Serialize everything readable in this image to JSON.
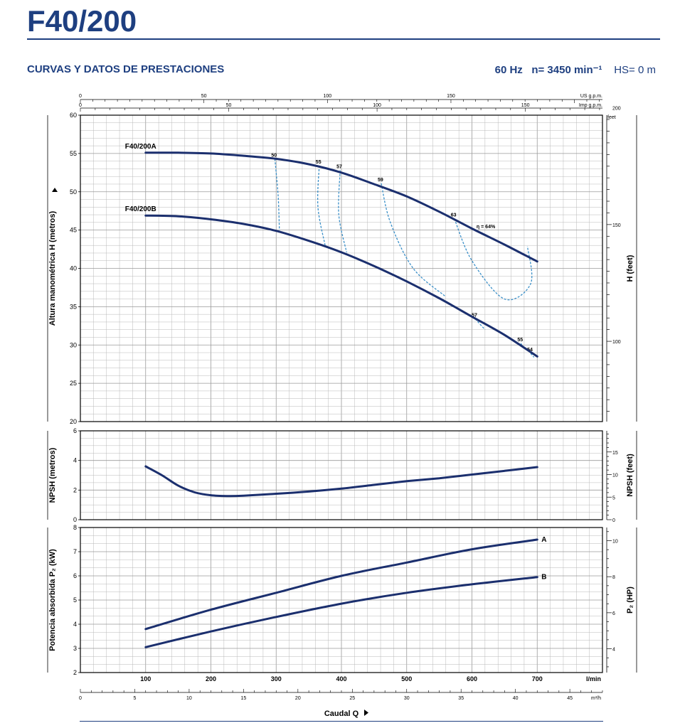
{
  "header": {
    "title": "F40/200",
    "subtitle": "CURVAS Y DATOS DE PRESTACIONES",
    "frequency": "60 Hz",
    "speed": "n= 3450 min⁻¹",
    "hs": "HS= 0 m"
  },
  "colors": {
    "brand": "#1e3f80",
    "curve": "#1b2f6e",
    "efficiency": "#3a8fc8",
    "grid": "#b8b8b8"
  },
  "chart_data": [
    {
      "type": "line",
      "title": "",
      "ylabel": "Altura manométrica H (metros)",
      "y2label": "H (feet)",
      "ylim": [
        20,
        60
      ],
      "y_ticks": [
        20,
        25,
        30,
        35,
        40,
        45,
        50,
        55,
        60
      ],
      "y2_unit": "feet",
      "y2_ticks": [
        100,
        150,
        200
      ],
      "top_axis_1_unit": "US g.p.m.",
      "top_axis_1_ticks": [
        0,
        50,
        100,
        150
      ],
      "top_axis_2_unit": "Imp g.p.m.",
      "top_axis_2_ticks": [
        0,
        50,
        100,
        150
      ],
      "xlim": [
        0,
        800
      ],
      "series": [
        {
          "name": "F40/200A",
          "x": [
            100,
            150,
            200,
            250,
            300,
            350,
            400,
            450,
            500,
            550,
            600,
            650,
            700
          ],
          "values": [
            55.1,
            55.1,
            55.0,
            54.7,
            54.3,
            53.6,
            52.5,
            51.0,
            49.4,
            47.4,
            45.2,
            43.1,
            40.9
          ]
        },
        {
          "name": "F40/200B",
          "x": [
            100,
            150,
            200,
            250,
            300,
            350,
            400,
            450,
            500,
            550,
            600,
            650,
            700
          ],
          "values": [
            46.9,
            46.8,
            46.4,
            45.8,
            44.9,
            43.6,
            42.1,
            40.3,
            38.3,
            36.1,
            33.7,
            31.3,
            28.5
          ]
        }
      ],
      "efficiency_curves": [
        {
          "label": "50",
          "x": [
            298,
            303,
            305
          ],
          "values": [
            54.3,
            49.5,
            45.0
          ]
        },
        {
          "label": "55",
          "x": [
            366,
            364,
            375
          ],
          "values": [
            53.4,
            48.0,
            43.0
          ]
        },
        {
          "label": "57",
          "x": [
            398,
            396,
            408
          ],
          "values": [
            52.8,
            47.0,
            42.1
          ]
        },
        {
          "label": "59",
          "x": [
            461,
            475,
            510,
            560
          ],
          "values": [
            51.1,
            46.0,
            40.0,
            36.3
          ]
        },
        {
          "label": "63",
          "x": [
            573,
            600,
            650,
            690,
            685
          ],
          "values": [
            46.5,
            41.0,
            36.0,
            38.0,
            42.9
          ]
        },
        {
          "label": "57",
          "x": [
            605,
            620
          ],
          "values": [
            33.4,
            32.0
          ]
        },
        {
          "label": "55",
          "x": [
            675,
            680
          ],
          "values": [
            30.2,
            29.5
          ]
        },
        {
          "label": "54",
          "x": [
            690,
            695
          ],
          "values": [
            28.9,
            28.4
          ]
        }
      ],
      "efficiency_annotation": "η = 64%"
    },
    {
      "type": "line",
      "title": "",
      "ylabel": "NPSH (metros)",
      "y2label": "NPSH (feet)",
      "ylim": [
        0,
        6
      ],
      "y_ticks": [
        0,
        2,
        4,
        6
      ],
      "y2_ticks": [
        0,
        5,
        10,
        15
      ],
      "xlim": [
        0,
        800
      ],
      "series": [
        {
          "name": "",
          "x": [
            100,
            125,
            150,
            175,
            200,
            225,
            250,
            300,
            350,
            400,
            450,
            500,
            550,
            600,
            650,
            700
          ],
          "values": [
            3.6,
            3.0,
            2.3,
            1.85,
            1.65,
            1.6,
            1.62,
            1.75,
            1.9,
            2.1,
            2.35,
            2.6,
            2.8,
            3.05,
            3.3,
            3.55
          ]
        }
      ]
    },
    {
      "type": "line",
      "title": "",
      "ylabel": "Potencia absorbida P₂ (kW)",
      "y2label": "P₂ (HP)",
      "ylim": [
        2,
        8
      ],
      "y_ticks": [
        2,
        3,
        4,
        5,
        6,
        7,
        8
      ],
      "y2_ticks": [
        4,
        6,
        8,
        10
      ],
      "xlabel": "Caudal Q",
      "x_unit": "l/min",
      "x_ticks": [
        100,
        200,
        300,
        400,
        500,
        600,
        700
      ],
      "x2_unit": "m³/h",
      "x2_ticks": [
        0,
        5,
        10,
        15,
        20,
        25,
        30,
        35,
        40,
        45
      ],
      "xlim": [
        0,
        800
      ],
      "series": [
        {
          "name": "A",
          "x": [
            100,
            200,
            300,
            400,
            500,
            600,
            700
          ],
          "values": [
            3.8,
            4.6,
            5.3,
            6.0,
            6.55,
            7.1,
            7.5
          ]
        },
        {
          "name": "B",
          "x": [
            100,
            200,
            300,
            400,
            500,
            600,
            700
          ],
          "values": [
            3.05,
            3.7,
            4.3,
            4.85,
            5.3,
            5.65,
            5.95
          ]
        }
      ]
    }
  ]
}
